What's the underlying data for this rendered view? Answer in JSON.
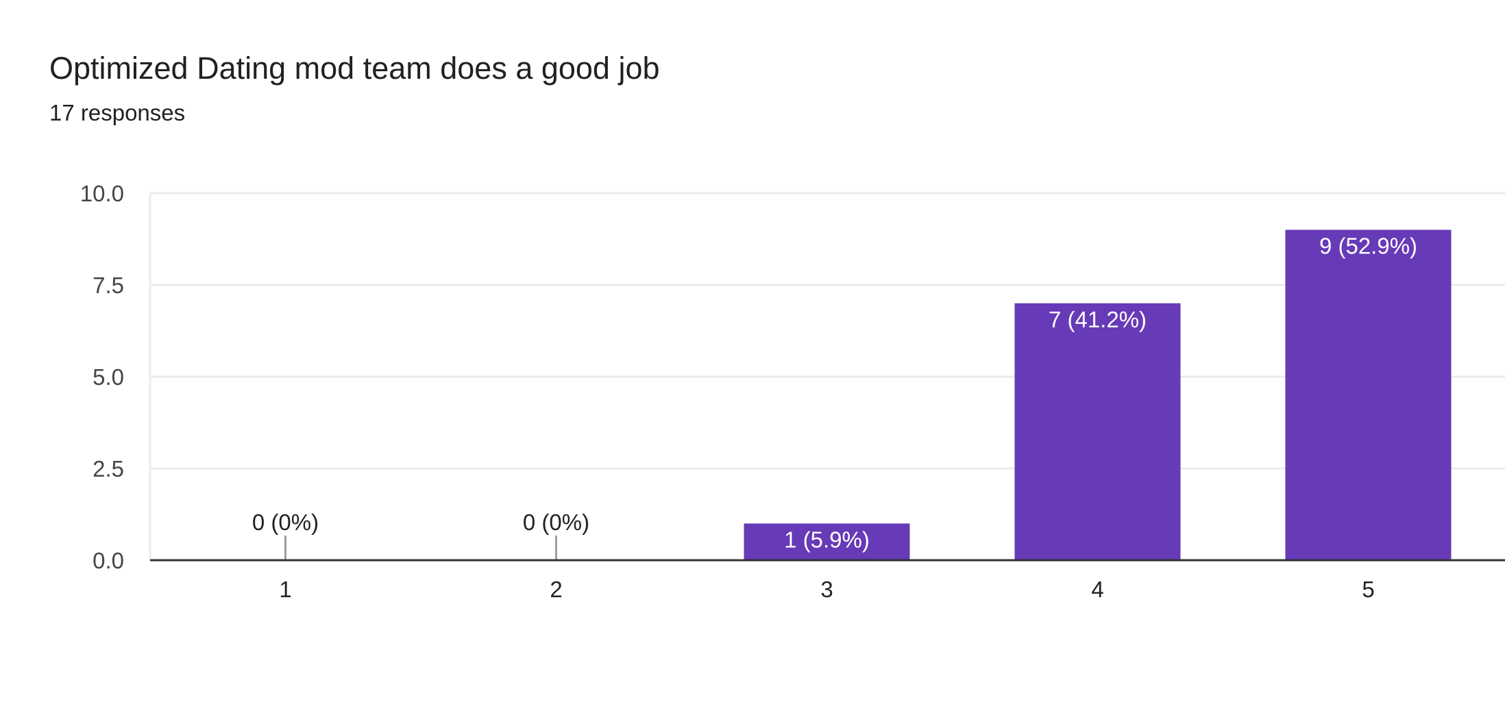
{
  "header": {
    "title": "Optimized Dating mod team does a good job",
    "responses_label": "17 responses"
  },
  "colors": {
    "bar": "#673AB7",
    "grid": "#ebebeb",
    "axis": "#333333",
    "text": "#202124",
    "zero_tick": "#9e9e9e",
    "bar_label": "#ffffff"
  },
  "chart_data": {
    "type": "bar",
    "categories": [
      "1",
      "2",
      "3",
      "4",
      "5"
    ],
    "values": [
      0,
      0,
      1,
      7,
      9
    ],
    "data_labels": [
      "0 (0%)",
      "0 (0%)",
      "1 (5.9%)",
      "7 (41.2%)",
      "9 (52.9%)"
    ],
    "ylim": [
      0,
      10
    ],
    "yticks": [
      0,
      2.5,
      5,
      7.5,
      10
    ],
    "ytick_labels": [
      "0.0",
      "2.5",
      "5.0",
      "7.5",
      "10.0"
    ],
    "grid": true,
    "title": "Optimized Dating mod team does a good job",
    "xlabel": "",
    "ylabel": ""
  }
}
